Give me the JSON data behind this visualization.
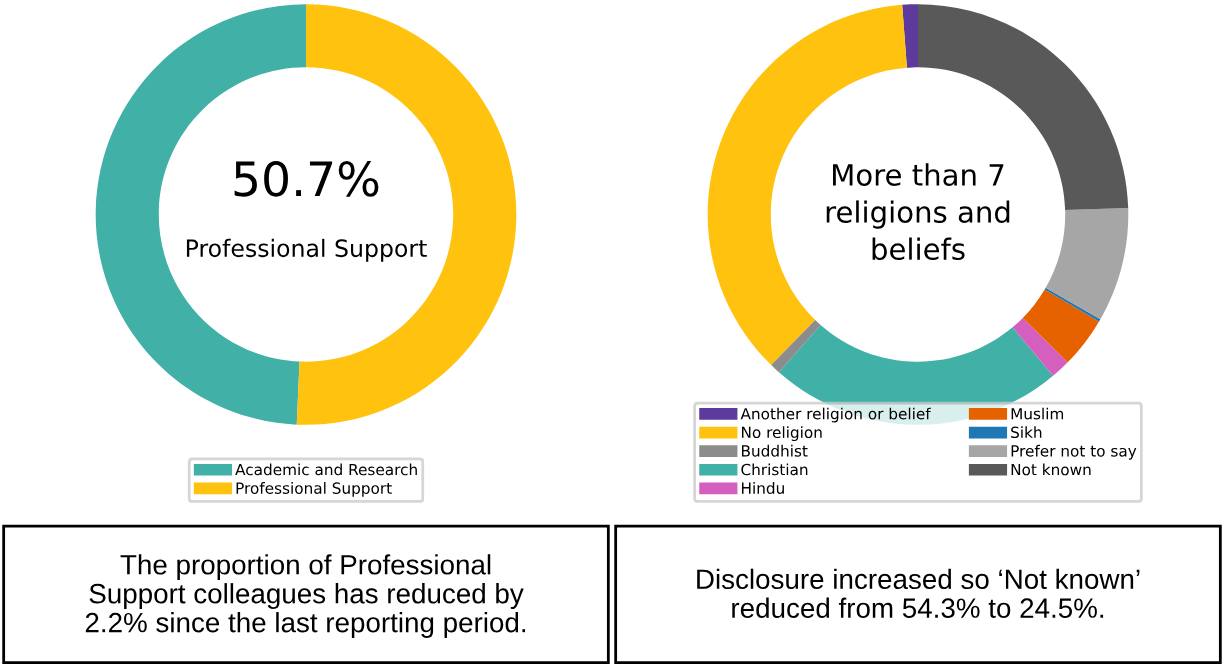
{
  "chart_data": [
    {
      "type": "donut",
      "categories": [
        "Academic and Research",
        "Professional Support"
      ],
      "values": [
        49.3,
        50.7
      ],
      "colors": [
        "#41b0a6",
        "#ffc20e"
      ],
      "legend": "bottom",
      "annotations": [
        "50.7%",
        "Professional Support",
        "The proportion of Professional\nSupport colleagues has reduced by\n2.2% since the last reporting period."
      ]
    },
    {
      "type": "donut",
      "categories": [
        "Another religion or belief",
        "No religion",
        "Buddhist",
        "Christian",
        "Hindu",
        "Muslim",
        "Sikh",
        "Prefer not to say",
        "Not known"
      ],
      "values": [
        1.2,
        36.5,
        0.8,
        22.6,
        1.5,
        3.9,
        0.2,
        8.8,
        24.5
      ],
      "colors": [
        "#5c3b9c",
        "#ffc20e",
        "#8c8c8c",
        "#41b0a6",
        "#d45fbf",
        "#e66100",
        "#1f77b4",
        "#a6a6a6",
        "#595959"
      ],
      "legend": "bottom",
      "annotations": [
        "More than 7\nreligions and\nbeliefs",
        "Disclosure increased so ‘Not known’\nreduced from 54.3% to 24.5%."
      ]
    }
  ]
}
